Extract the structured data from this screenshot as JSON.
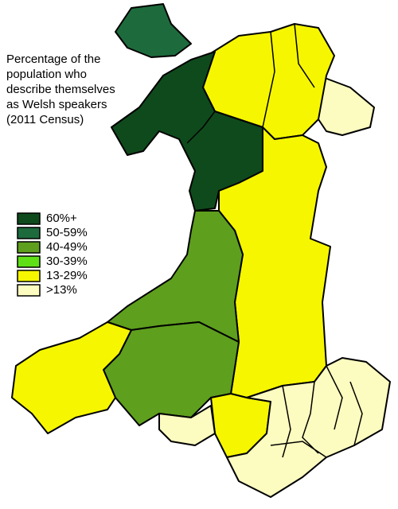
{
  "title_lines": [
    "Percentage of the",
    "population who",
    "describe themselves",
    "as Welsh speakers",
    "(2011 Census)"
  ],
  "legend": [
    {
      "label": "60%+",
      "color": "#0f4a1c"
    },
    {
      "label": "50-59%",
      "color": "#1d6b3c"
    },
    {
      "label": "40-49%",
      "color": "#5e9f1e"
    },
    {
      "label": "30-39%",
      "color": "#5fe016"
    },
    {
      "label": "13-29%",
      "color": "#f6f600"
    },
    {
      "label": ">13%",
      "color": "#fcfcc0"
    }
  ]
}
